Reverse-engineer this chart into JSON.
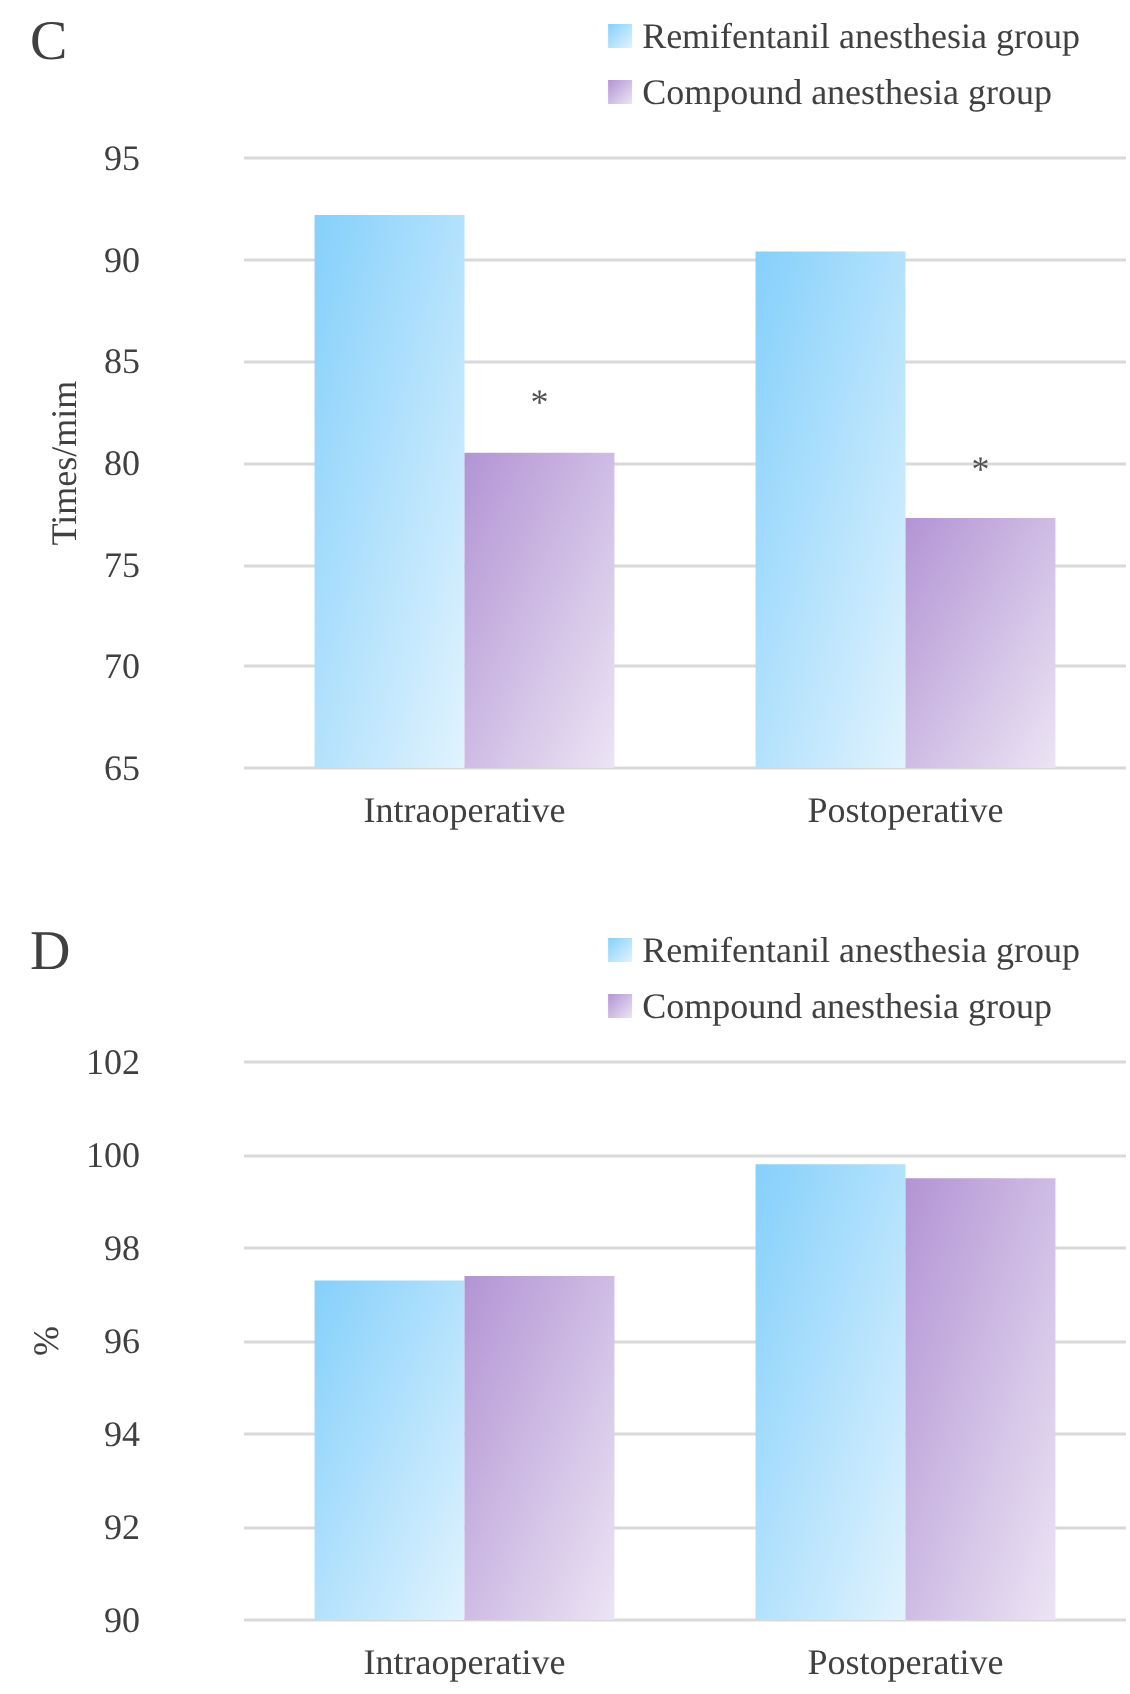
{
  "chart_data": [
    {
      "type": "bar",
      "title": "C",
      "ylabel": "Times/mim",
      "categories": [
        "Intraoperative",
        "Postoperative"
      ],
      "series": [
        {
          "name": "Remifentanil anesthesia group",
          "color": "#85d0fb",
          "values": [
            92.2,
            90.4
          ]
        },
        {
          "name": "Compound anesthesia group",
          "color": "#b294d4",
          "values": [
            80.5,
            77.3
          ]
        }
      ],
      "ylim": [
        65,
        95
      ],
      "yticks": [
        65,
        70,
        75,
        80,
        85,
        90,
        95
      ],
      "grid": "y",
      "legend": "top right",
      "annotations": [
        {
          "text": "*",
          "x": "Intraoperative",
          "y": 83
        },
        {
          "text": "*",
          "x": "Postoperative",
          "y": 79.7
        }
      ]
    },
    {
      "type": "bar",
      "title": "D",
      "ylabel": "%",
      "categories": [
        "Intraoperative",
        "Postoperative"
      ],
      "series": [
        {
          "name": "Remifentanil anesthesia group",
          "color": "#85d0fb",
          "values": [
            97.3,
            99.8
          ]
        },
        {
          "name": "Compound anesthesia group",
          "color": "#b294d4",
          "values": [
            97.4,
            99.5
          ]
        }
      ],
      "ylim": [
        90,
        102
      ],
      "yticks": [
        90,
        92,
        94,
        96,
        98,
        100,
        102
      ],
      "grid": "y",
      "legend": "top right"
    }
  ]
}
